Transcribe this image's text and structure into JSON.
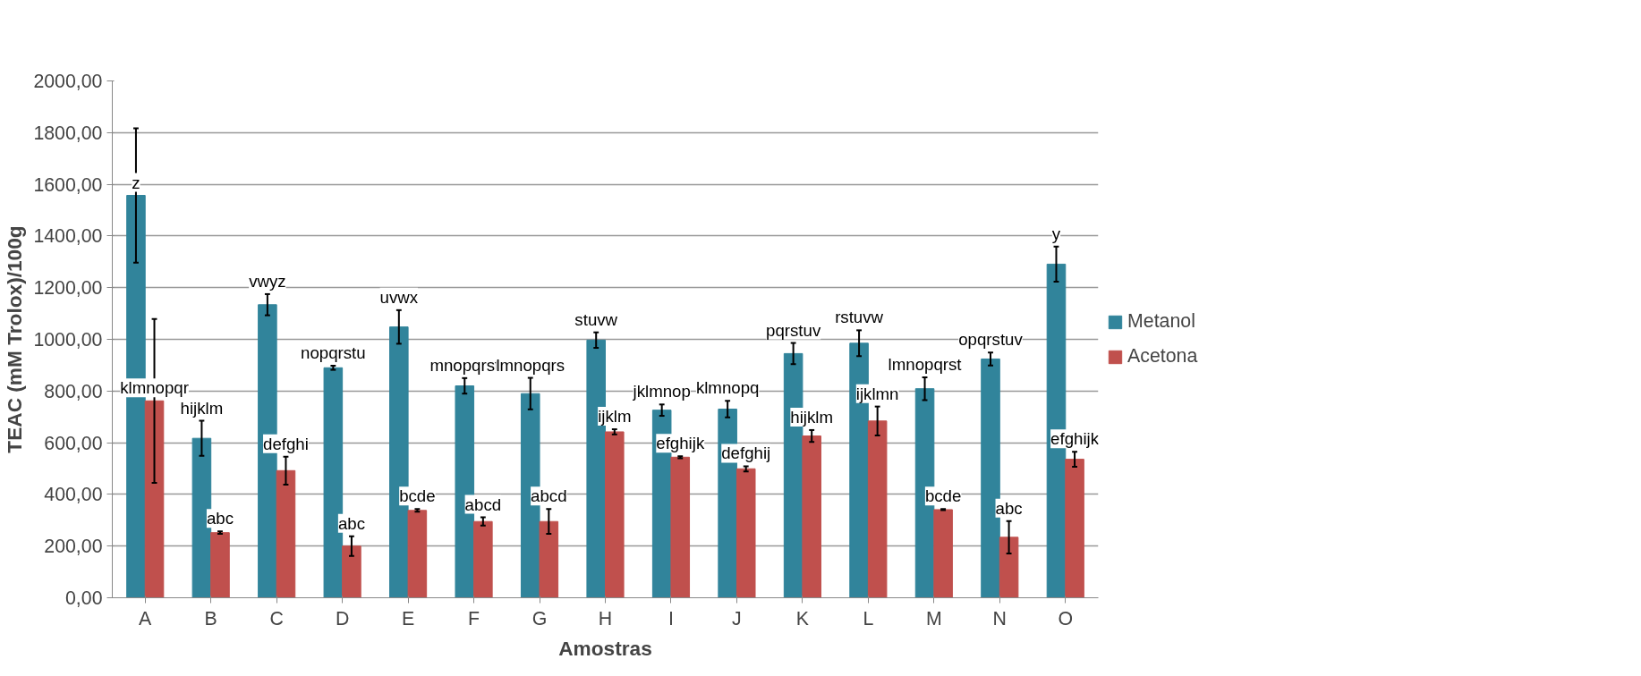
{
  "chart_data": {
    "type": "bar",
    "xlabel": "Amostras",
    "ylabel": "TEAC (mM Trolox)/100g",
    "categories": [
      "A",
      "B",
      "C",
      "D",
      "E",
      "F",
      "G",
      "H",
      "I",
      "J",
      "K",
      "L",
      "M",
      "N",
      "O"
    ],
    "ylim": [
      0,
      2000
    ],
    "yticks": [
      {
        "value": 0,
        "label": "0,00"
      },
      {
        "value": 200,
        "label": "200,00"
      },
      {
        "value": 400,
        "label": "400,00"
      },
      {
        "value": 600,
        "label": "600,00"
      },
      {
        "value": 800,
        "label": "800,00"
      },
      {
        "value": 1000,
        "label": "1000,00"
      },
      {
        "value": 1200,
        "label": "1200,00"
      },
      {
        "value": 1400,
        "label": "1400,00"
      },
      {
        "value": 1600,
        "label": "1600,00"
      },
      {
        "value": 1800,
        "label": "1800,00"
      },
      {
        "value": 2000,
        "label": "2000,00"
      }
    ],
    "grid": "y",
    "legend": "right",
    "series": [
      {
        "name": "Metanol",
        "color": "#31849b",
        "values": [
          1557,
          617,
          1134,
          890,
          1048,
          820,
          790,
          997,
          726,
          730,
          945,
          985,
          809,
          924,
          1291
        ],
        "errors": [
          260,
          68,
          41,
          8,
          65,
          30,
          61,
          30,
          22,
          32,
          41,
          50,
          44,
          25,
          68
        ],
        "value_labels": [
          "z",
          "hijklm",
          "vwyz",
          "nopqrstu",
          "uvwx",
          "mnopqrst",
          "lmnopqrs",
          "stuvw",
          "jklmnop",
          "klmnopq",
          "pqrstuv",
          "rstuvw",
          "lmnopqrst",
          "opqrstuv",
          "y"
        ]
      },
      {
        "name": "Acetona",
        "color": "#c0504d",
        "values": [
          762,
          252,
          492,
          200,
          338,
          295,
          295,
          642,
          544,
          499,
          626,
          684,
          341,
          234,
          536
        ],
        "errors": [
          317,
          5,
          54,
          38,
          5,
          16,
          48,
          10,
          4,
          10,
          23,
          56,
          2,
          63,
          29
        ],
        "value_labels": [
          "klmnopqr",
          "abc",
          "defghi",
          "abc",
          "bcde",
          "abcd",
          "abcd",
          "ijklm",
          "efghijk",
          "defghij",
          "hijklm",
          "ijklmn",
          "bcde",
          "abc",
          "efghijk"
        ]
      }
    ]
  }
}
